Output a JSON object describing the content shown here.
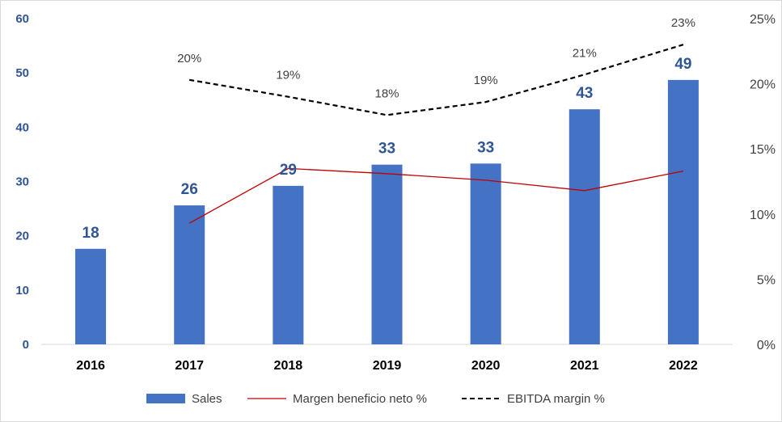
{
  "chart_data": {
    "type": "bar",
    "categories": [
      "2016",
      "2017",
      "2018",
      "2019",
      "2020",
      "2021",
      "2022"
    ],
    "series": [
      {
        "name": "Sales",
        "type": "bar",
        "axis": "left",
        "color": "#4472C4",
        "values": [
          17.6,
          25.6,
          29.2,
          33.1,
          33.3,
          43.3,
          48.7
        ],
        "data_labels": [
          "18",
          "26",
          "29",
          "33",
          "33",
          "43",
          "49"
        ]
      },
      {
        "name": "Margen beneficio neto %",
        "type": "line",
        "axis": "right",
        "color": "#C00000",
        "line_style": "solid",
        "values": [
          null,
          9.3,
          13.5,
          13.1,
          12.6,
          11.8,
          13.3
        ],
        "data_labels": []
      },
      {
        "name": "EBITDA margin %",
        "type": "line",
        "axis": "right",
        "color": "#000000",
        "line_style": "dashed",
        "values": [
          null,
          20.3,
          19.0,
          17.6,
          18.6,
          20.7,
          23.0
        ],
        "data_labels": [
          null,
          "20%",
          "19%",
          "18%",
          "19%",
          "21%",
          "23%"
        ]
      }
    ],
    "left_axis": {
      "ticks": [
        "0",
        "10",
        "20",
        "30",
        "40",
        "50",
        "60"
      ],
      "ylim": [
        0,
        60
      ],
      "color": "#2F5597"
    },
    "right_axis": {
      "ticks": [
        "0%",
        "5%",
        "10%",
        "15%",
        "20%",
        "25%"
      ],
      "ylim": [
        0,
        25
      ],
      "color": "#404040"
    },
    "title": "",
    "xlabel": "",
    "ylabel": "",
    "grid": false,
    "legend_position": "bottom"
  }
}
